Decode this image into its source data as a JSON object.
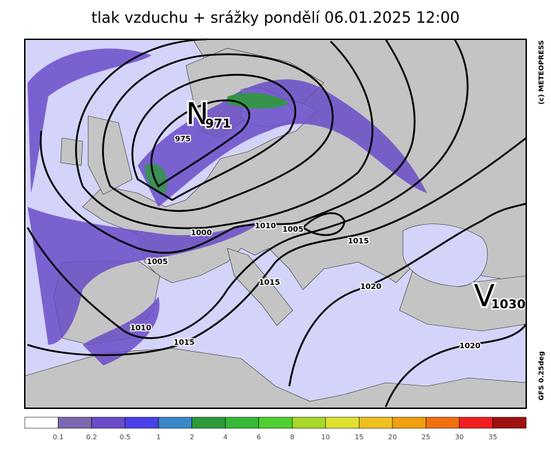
{
  "title": "tlak vzduchu + srážky pondělí 06.01.2025 12:00",
  "credit": "(c) METEOPRESS",
  "model": "GFS 0.25deg",
  "low": {
    "letter": "N",
    "value": "971"
  },
  "high": {
    "letter": "V",
    "value": "1030"
  },
  "isobar_labels": [
    "975",
    "1000",
    "1010",
    "1005",
    "1005",
    "1015",
    "1015",
    "1020",
    "1010",
    "1015",
    "1020"
  ],
  "legend": {
    "colors": [
      "#ffffff",
      "#7c68b0",
      "#6a4cc8",
      "#4a40e8",
      "#3a88c8",
      "#2e9a3a",
      "#38b838",
      "#50d030",
      "#a8d828",
      "#e0e030",
      "#f0c020",
      "#f0a010",
      "#f07010",
      "#f02020",
      "#a01010"
    ],
    "labels": [
      "0.1",
      "0.2",
      "0.5",
      "1",
      "2",
      "4",
      "6",
      "8",
      "10",
      "15",
      "20",
      "25",
      "30",
      "35"
    ]
  }
}
